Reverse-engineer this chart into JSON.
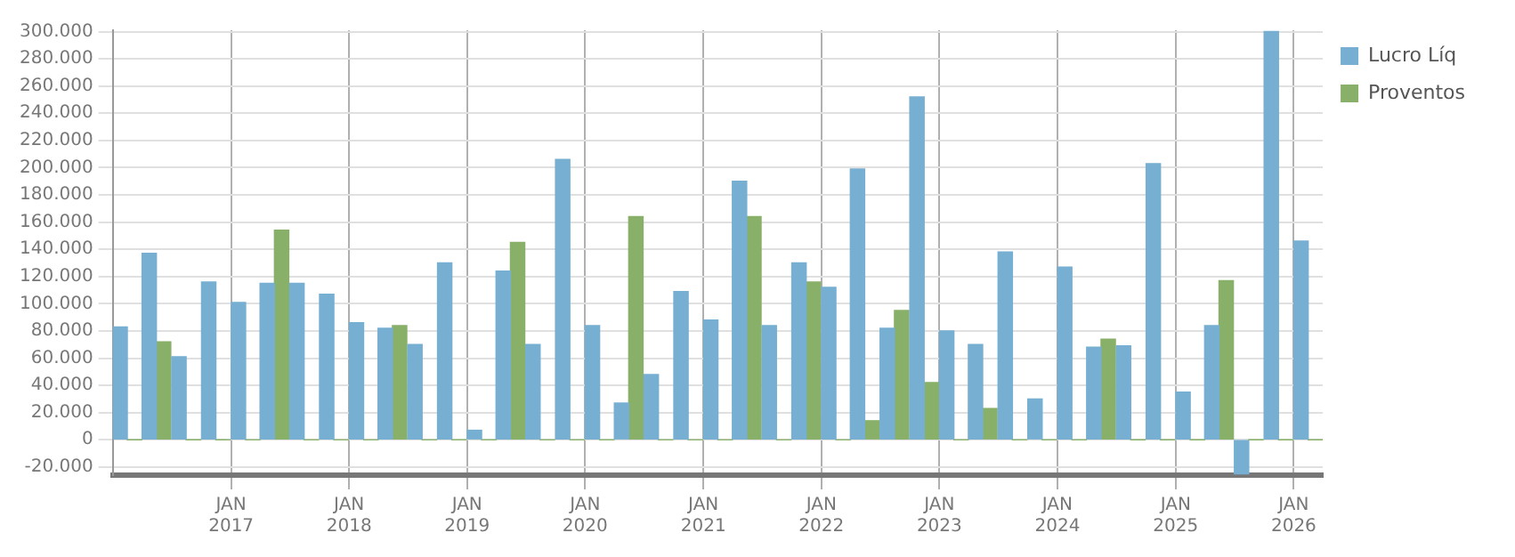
{
  "chart_data": {
    "type": "bar",
    "x": [
      "2016-02-15",
      "2016-05-15",
      "2016-08-15",
      "2016-11-15",
      "2017-02-15",
      "2017-05-15",
      "2017-08-15",
      "2017-11-15",
      "2018-02-15",
      "2018-05-15",
      "2018-08-15",
      "2018-11-15",
      "2019-02-15",
      "2019-05-15",
      "2019-08-15",
      "2019-11-15",
      "2020-02-15",
      "2020-05-15",
      "2020-08-15",
      "2020-11-15",
      "2021-02-15",
      "2021-05-15",
      "2021-08-15",
      "2021-11-15",
      "2022-02-15",
      "2022-05-15",
      "2022-08-15",
      "2022-11-15",
      "2023-02-15",
      "2023-05-15",
      "2023-08-15",
      "2023-11-15",
      "2024-02-15",
      "2024-05-15",
      "2024-08-15",
      "2024-11-15",
      "2025-02-15",
      "2025-05-15",
      "2025-08-15",
      "2025-11-15",
      "2026-02-15"
    ],
    "series": [
      {
        "name": "Lucro Líq",
        "color": "#77afd2",
        "values": [
          83000,
          137000,
          61000,
          116000,
          101000,
          115000,
          115000,
          107000,
          86000,
          82000,
          70000,
          130000,
          7000,
          124000,
          70000,
          206000,
          84000,
          27000,
          48000,
          109000,
          88000,
          190000,
          84000,
          130000,
          112000,
          199000,
          82000,
          252000,
          80000,
          70000,
          138000,
          30000,
          127000,
          68000,
          69000,
          203000,
          35000,
          84000,
          -25000,
          300000,
          146000
        ]
      },
      {
        "name": "Proventos",
        "color": "#88b068",
        "values": [
          0,
          72000,
          0,
          0,
          0,
          154000,
          0,
          0,
          0,
          84000,
          0,
          0,
          0,
          145000,
          0,
          0,
          0,
          164000,
          0,
          0,
          0,
          164000,
          0,
          116000,
          0,
          14000,
          95000,
          42000,
          0,
          23000,
          0,
          0,
          0,
          74000,
          0,
          0,
          0,
          117000,
          0,
          0,
          0
        ]
      }
    ],
    "xlim": [
      "2016-01-01",
      "2026-04-01"
    ],
    "xticks": [
      {
        "value": "2017-01-01",
        "label": "JAN 2017"
      },
      {
        "value": "2018-01-01",
        "label": "JAN 2018"
      },
      {
        "value": "2019-01-01",
        "label": "JAN 2019"
      },
      {
        "value": "2020-01-01",
        "label": "JAN 2020"
      },
      {
        "value": "2021-01-01",
        "label": "JAN 2021"
      },
      {
        "value": "2022-01-01",
        "label": "JAN 2022"
      },
      {
        "value": "2023-01-01",
        "label": "JAN 2023"
      },
      {
        "value": "2024-01-01",
        "label": "JAN 2024"
      },
      {
        "value": "2025-01-01",
        "label": "JAN 2025"
      },
      {
        "value": "2026-01-01",
        "label": "JAN 2026"
      }
    ],
    "ylim": [
      -26000,
      301000
    ],
    "yticks": [
      {
        "value": -20000,
        "label": "-20.000"
      },
      {
        "value": 0,
        "label": "0"
      },
      {
        "value": 20000,
        "label": "20.000"
      },
      {
        "value": 40000,
        "label": "40.000"
      },
      {
        "value": 60000,
        "label": "60.000"
      },
      {
        "value": 80000,
        "label": "80.000"
      },
      {
        "value": 100000,
        "label": "100.000"
      },
      {
        "value": 120000,
        "label": "120.000"
      },
      {
        "value": 140000,
        "label": "140.000"
      },
      {
        "value": 160000,
        "label": "160.000"
      },
      {
        "value": 180000,
        "label": "180.000"
      },
      {
        "value": 200000,
        "label": "200.000"
      },
      {
        "value": 220000,
        "label": "220.000"
      },
      {
        "value": 240000,
        "label": "240.000"
      },
      {
        "value": 260000,
        "label": "260.000"
      },
      {
        "value": 280000,
        "label": "280.000"
      },
      {
        "value": 300000,
        "label": "300.000"
      }
    ],
    "grid": true,
    "legend": "top right"
  }
}
